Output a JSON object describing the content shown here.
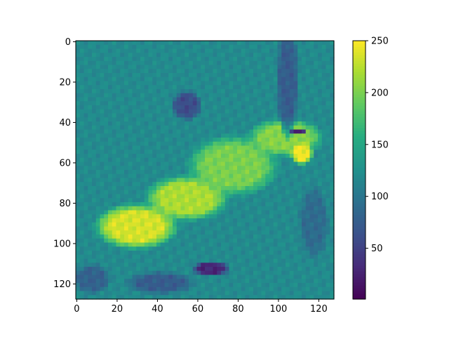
{
  "chart_data": {
    "type": "heatmap",
    "title": "",
    "xlabel": "",
    "ylabel": "",
    "colormap": "viridis",
    "image_size": [
      128,
      128
    ],
    "xlim": [
      0,
      127
    ],
    "ylim": [
      127,
      0
    ],
    "x_ticks": [
      0,
      20,
      40,
      60,
      80,
      100,
      120
    ],
    "y_ticks": [
      0,
      20,
      40,
      60,
      80,
      100,
      120
    ],
    "colorbar": {
      "range": [
        1,
        250
      ],
      "ticks": [
        50,
        100,
        150,
        200,
        250
      ]
    },
    "regions": [
      {
        "kind": "base",
        "value": 120
      },
      {
        "kind": "blob",
        "cx": 30,
        "cy": 92,
        "rx": 22,
        "ry": 12,
        "value": 235
      },
      {
        "kind": "blob",
        "cx": 55,
        "cy": 78,
        "rx": 22,
        "ry": 12,
        "value": 220
      },
      {
        "kind": "blob",
        "cx": 78,
        "cy": 62,
        "rx": 24,
        "ry": 16,
        "value": 200
      },
      {
        "kind": "blob",
        "cx": 104,
        "cy": 48,
        "rx": 20,
        "ry": 10,
        "value": 205
      },
      {
        "kind": "blob",
        "cx": 112,
        "cy": 56,
        "rx": 6,
        "ry": 6,
        "value": 245
      },
      {
        "kind": "blob",
        "cx": 55,
        "cy": 32,
        "rx": 8,
        "ry": 8,
        "value": 60
      },
      {
        "kind": "blob",
        "cx": 110,
        "cy": 45,
        "rx": 5,
        "ry": 2,
        "value": 30
      },
      {
        "kind": "blob",
        "cx": 67,
        "cy": 113,
        "rx": 10,
        "ry": 4,
        "value": 30
      },
      {
        "kind": "blob",
        "cx": 42,
        "cy": 120,
        "rx": 18,
        "ry": 6,
        "value": 75
      },
      {
        "kind": "blob",
        "cx": 105,
        "cy": 20,
        "rx": 6,
        "ry": 30,
        "value": 75
      },
      {
        "kind": "blob",
        "cx": 118,
        "cy": 90,
        "rx": 8,
        "ry": 20,
        "value": 90
      },
      {
        "kind": "blob",
        "cx": 8,
        "cy": 118,
        "rx": 10,
        "ry": 8,
        "value": 80
      }
    ]
  }
}
